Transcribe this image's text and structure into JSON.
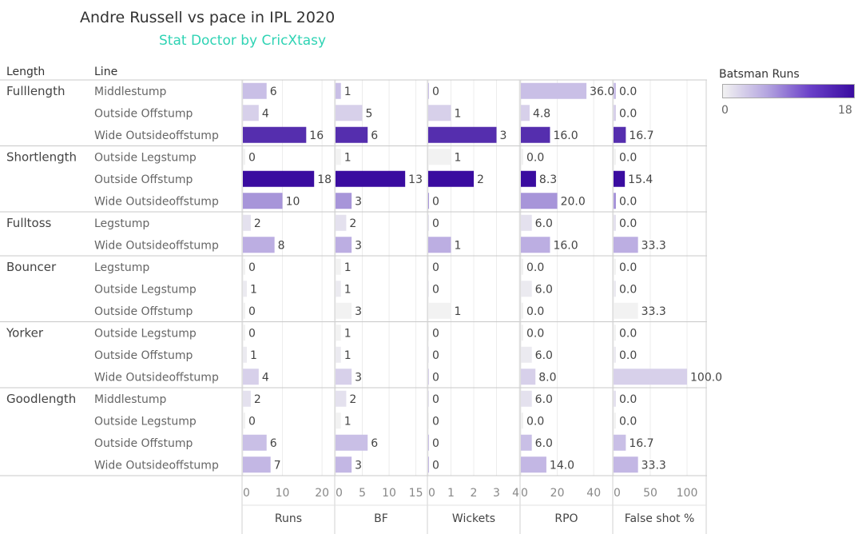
{
  "title": "Andre Russell vs pace in IPL 2020",
  "subtitle": "Stat Doctor by CricXtasy",
  "headers": {
    "length": "Length",
    "line": "Line"
  },
  "legend": {
    "title": "Batsman Runs",
    "min": "0",
    "max": "18",
    "min_value": 0,
    "max_value": 18
  },
  "colors": {
    "low": "#f2f2f2",
    "mid": "#b5a6e0",
    "high": "#3a0ca0",
    "subtitle": "#2fd3b4"
  },
  "chart_data": {
    "type": "bar",
    "orientation": "horizontal",
    "color_by": "Runs",
    "groups": [
      {
        "length": "Fulllength",
        "rows": [
          {
            "line": "Middlestump",
            "runs": 6,
            "bf": 1,
            "wickets": 0,
            "rpo": "36.0",
            "fs": "0.0"
          },
          {
            "line": "Outside Offstump",
            "runs": 4,
            "bf": 5,
            "wickets": 1,
            "rpo": "4.8",
            "fs": "0.0"
          },
          {
            "line": "Wide Outsideoffstump",
            "runs": 16,
            "bf": 6,
            "wickets": 3,
            "rpo": "16.0",
            "fs": "16.7"
          }
        ]
      },
      {
        "length": "Shortlength",
        "rows": [
          {
            "line": "Outside Legstump",
            "runs": 0,
            "bf": 1,
            "wickets": 1,
            "rpo": "0.0",
            "fs": "0.0"
          },
          {
            "line": "Outside Offstump",
            "runs": 18,
            "bf": 13,
            "wickets": 2,
            "rpo": "8.3",
            "fs": "15.4"
          },
          {
            "line": "Wide Outsideoffstump",
            "runs": 10,
            "bf": 3,
            "wickets": 0,
            "rpo": "20.0",
            "fs": "0.0"
          }
        ]
      },
      {
        "length": "Fulltoss",
        "rows": [
          {
            "line": "Legstump",
            "runs": 2,
            "bf": 2,
            "wickets": 0,
            "rpo": "6.0",
            "fs": "0.0"
          },
          {
            "line": "Wide Outsideoffstump",
            "runs": 8,
            "bf": 3,
            "wickets": 1,
            "rpo": "16.0",
            "fs": "33.3"
          }
        ]
      },
      {
        "length": "Bouncer",
        "rows": [
          {
            "line": "Legstump",
            "runs": 0,
            "bf": 1,
            "wickets": 0,
            "rpo": "0.0",
            "fs": "0.0"
          },
          {
            "line": "Outside Legstump",
            "runs": 1,
            "bf": 1,
            "wickets": 0,
            "rpo": "6.0",
            "fs": "0.0"
          },
          {
            "line": "Outside Offstump",
            "runs": 0,
            "bf": 3,
            "wickets": 1,
            "rpo": "0.0",
            "fs": "33.3"
          }
        ]
      },
      {
        "length": "Yorker",
        "rows": [
          {
            "line": "Outside Legstump",
            "runs": 0,
            "bf": 1,
            "wickets": 0,
            "rpo": "0.0",
            "fs": "0.0"
          },
          {
            "line": "Outside Offstump",
            "runs": 1,
            "bf": 1,
            "wickets": 0,
            "rpo": "6.0",
            "fs": "0.0"
          },
          {
            "line": "Wide Outsideoffstump",
            "runs": 4,
            "bf": 3,
            "wickets": 0,
            "rpo": "8.0",
            "fs": "100.0"
          }
        ]
      },
      {
        "length": "Goodlength",
        "rows": [
          {
            "line": "Middlestump",
            "runs": 2,
            "bf": 2,
            "wickets": 0,
            "rpo": "6.0",
            "fs": "0.0"
          },
          {
            "line": "Outside Legstump",
            "runs": 0,
            "bf": 1,
            "wickets": 0,
            "rpo": "0.0",
            "fs": "0.0"
          },
          {
            "line": "Outside Offstump",
            "runs": 6,
            "bf": 6,
            "wickets": 0,
            "rpo": "6.0",
            "fs": "16.7"
          },
          {
            "line": "Wide Outsideoffstump",
            "runs": 7,
            "bf": 3,
            "wickets": 0,
            "rpo": "14.0",
            "fs": "33.3"
          }
        ]
      }
    ],
    "measures": [
      {
        "key": "runs",
        "label": "Runs",
        "max": 23,
        "ticks": [
          "0",
          "10",
          "20"
        ]
      },
      {
        "key": "bf",
        "label": "BF",
        "max": 17,
        "ticks": [
          "0",
          "5",
          "10",
          "15"
        ]
      },
      {
        "key": "wickets",
        "label": "Wickets",
        "max": 4,
        "ticks": [
          "0",
          "1",
          "2",
          "3",
          "4"
        ]
      },
      {
        "key": "rpo",
        "label": "RPO",
        "max": 50,
        "ticks": [
          "0",
          "20",
          "40"
        ]
      },
      {
        "key": "fs",
        "label": "False shot %",
        "max": 125,
        "ticks": [
          "0",
          "50",
          "100"
        ]
      }
    ]
  }
}
